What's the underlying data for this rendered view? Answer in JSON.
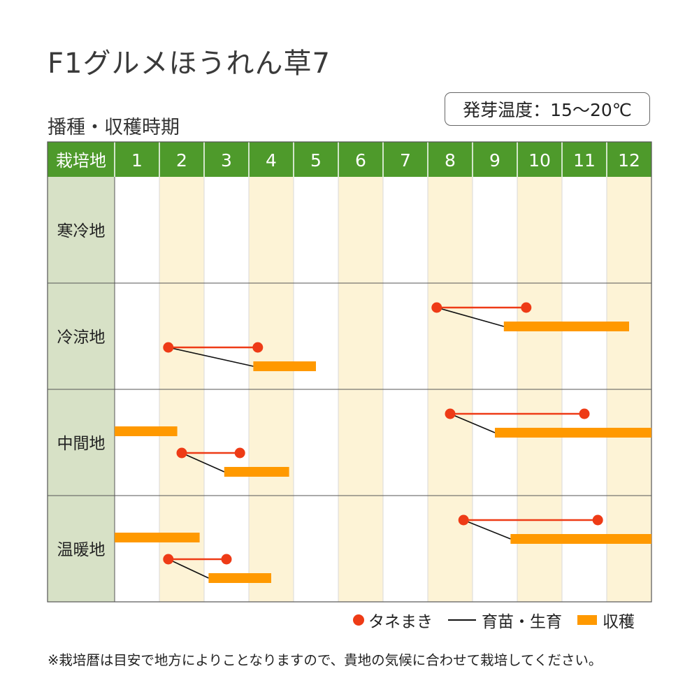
{
  "title": "F1グルメほうれん草7",
  "subtitle": "播種・収穫時期",
  "germination_temp": "発芽温度：15〜20℃",
  "footnote": "※栽培暦は目安で地方によりことなりますので、貴地の気候に合わせて栽培してください。",
  "legend": {
    "sowing": "タネまき",
    "raising": "育苗・生育",
    "harvest": "収穫"
  },
  "colors": {
    "header_green": "#4e9a2b",
    "region_cell": "#d7e1c6",
    "stripe": "#fdf3d6",
    "sowing": "#ee3b16",
    "raising": "#111111",
    "harvest": "#ff9900"
  },
  "chart_data": {
    "type": "table",
    "corner_label": "栽培地",
    "months": [
      "1",
      "2",
      "3",
      "4",
      "5",
      "6",
      "7",
      "8",
      "9",
      "10",
      "11",
      "12"
    ],
    "regions": [
      {
        "name": "寒冷地",
        "schedules": []
      },
      {
        "name": "冷涼地",
        "schedules": [
          {
            "sow_start": 8.2,
            "sow_end": 10.2,
            "harvest_start": 9.7,
            "harvest_end": 12.5
          },
          {
            "sow_start": 2.2,
            "sow_end": 4.2,
            "harvest_start": 4.1,
            "harvest_end": 5.5
          }
        ]
      },
      {
        "name": "中間地",
        "schedules": [
          {
            "sow_start": 8.5,
            "sow_end": 11.5,
            "harvest_start": 9.5,
            "harvest_end": 13.0
          },
          {
            "harvest_start": 1.0,
            "harvest_end": 2.4
          },
          {
            "sow_start": 2.5,
            "sow_end": 3.8,
            "harvest_start": 3.45,
            "harvest_end": 4.9
          }
        ]
      },
      {
        "name": "温暖地",
        "schedules": [
          {
            "sow_start": 8.8,
            "sow_end": 11.8,
            "harvest_start": 9.85,
            "harvest_end": 13.0
          },
          {
            "harvest_start": 1.0,
            "harvest_end": 2.9
          },
          {
            "sow_start": 2.2,
            "sow_end": 3.5,
            "harvest_start": 3.1,
            "harvest_end": 4.5
          }
        ]
      }
    ]
  }
}
